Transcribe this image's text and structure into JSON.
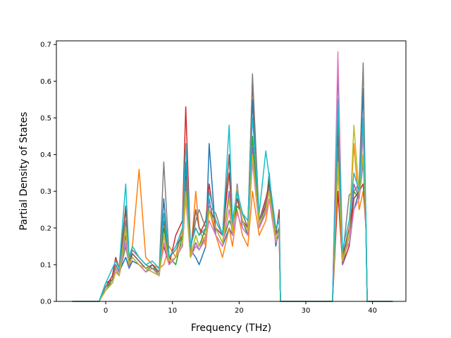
{
  "chart_data": {
    "type": "line",
    "title": "",
    "xlabel": "Frequency (THz)",
    "ylabel": "Partial Density of States",
    "xlim": [
      -7.4,
      45.0
    ],
    "ylim": [
      0.0,
      0.71
    ],
    "xticks": [
      0,
      10,
      20,
      30,
      40
    ],
    "yticks": [
      0.0,
      0.1,
      0.2,
      0.3,
      0.4,
      0.5,
      0.6,
      0.7
    ],
    "xtick_labels": [
      "0",
      "10",
      "20",
      "30",
      "40"
    ],
    "ytick_labels": [
      "0.0",
      "0.1",
      "0.2",
      "0.3",
      "0.4",
      "0.5",
      "0.6",
      "0.7"
    ],
    "grid": false,
    "legend": "none",
    "series_count": 10,
    "x": [
      -5.0,
      -1.0,
      0.0,
      1.0,
      1.5,
      2.0,
      3.0,
      3.5,
      4.0,
      5.0,
      6.0,
      7.0,
      8.0,
      8.7,
      9.5,
      10.5,
      11.5,
      12.0,
      12.7,
      13.5,
      14.0,
      15.0,
      15.5,
      16.5,
      17.5,
      18.5,
      19.0,
      19.7,
      20.5,
      21.3,
      22.0,
      23.0,
      24.0,
      24.5,
      25.5,
      26.0,
      26.2,
      30.0,
      34.0,
      34.8,
      35.5,
      36.5,
      37.2,
      38.0,
      38.6,
      39.0,
      39.2,
      43.0
    ],
    "series": [
      {
        "color": "#1f77b4",
        "values": [
          0,
          0,
          0.05,
          0.06,
          0.1,
          0.08,
          0.12,
          0.09,
          0.11,
          0.1,
          0.08,
          0.09,
          0.07,
          0.28,
          0.1,
          0.12,
          0.15,
          0.38,
          0.14,
          0.12,
          0.1,
          0.15,
          0.43,
          0.18,
          0.15,
          0.2,
          0.18,
          0.3,
          0.22,
          0.18,
          0.55,
          0.2,
          0.25,
          0.35,
          0.15,
          0.2,
          0,
          0,
          0,
          0.64,
          0.1,
          0.15,
          0.25,
          0.3,
          0.58,
          0.2,
          0,
          0
        ]
      },
      {
        "color": "#ff7f0e",
        "values": [
          0,
          0,
          0.04,
          0.05,
          0.08,
          0.07,
          0.2,
          0.1,
          0.15,
          0.36,
          0.12,
          0.1,
          0.09,
          0.1,
          0.15,
          0.12,
          0.2,
          0.3,
          0.12,
          0.3,
          0.2,
          0.15,
          0.25,
          0.18,
          0.12,
          0.2,
          0.15,
          0.25,
          0.18,
          0.15,
          0.3,
          0.18,
          0.22,
          0.28,
          0.16,
          0.18,
          0,
          0,
          0,
          0.36,
          0.12,
          0.2,
          0.43,
          0.25,
          0.3,
          0.22,
          0,
          0
        ]
      },
      {
        "color": "#2ca02c",
        "values": [
          0,
          0,
          0.03,
          0.06,
          0.09,
          0.07,
          0.15,
          0.1,
          0.12,
          0.1,
          0.08,
          0.1,
          0.07,
          0.2,
          0.12,
          0.1,
          0.18,
          0.32,
          0.12,
          0.18,
          0.15,
          0.2,
          0.25,
          0.2,
          0.16,
          0.22,
          0.2,
          0.26,
          0.24,
          0.2,
          0.45,
          0.22,
          0.25,
          0.33,
          0.18,
          0.2,
          0,
          0,
          0,
          0.5,
          0.12,
          0.18,
          0.3,
          0.28,
          0.47,
          0.22,
          0,
          0
        ]
      },
      {
        "color": "#d62728",
        "values": [
          0,
          0,
          0.04,
          0.07,
          0.12,
          0.09,
          0.25,
          0.12,
          0.14,
          0.12,
          0.1,
          0.09,
          0.08,
          0.15,
          0.1,
          0.18,
          0.22,
          0.53,
          0.15,
          0.2,
          0.18,
          0.22,
          0.32,
          0.2,
          0.18,
          0.35,
          0.22,
          0.28,
          0.22,
          0.2,
          0.4,
          0.22,
          0.28,
          0.32,
          0.18,
          0.2,
          0,
          0,
          0,
          0.3,
          0.1,
          0.15,
          0.28,
          0.3,
          0.32,
          0.2,
          0,
          0
        ]
      },
      {
        "color": "#9467bd",
        "values": [
          0,
          0,
          0.03,
          0.05,
          0.08,
          0.07,
          0.18,
          0.09,
          0.13,
          0.11,
          0.09,
          0.08,
          0.07,
          0.18,
          0.1,
          0.12,
          0.16,
          0.3,
          0.12,
          0.16,
          0.14,
          0.18,
          0.28,
          0.18,
          0.15,
          0.3,
          0.18,
          0.32,
          0.2,
          0.18,
          0.42,
          0.2,
          0.26,
          0.3,
          0.16,
          0.18,
          0,
          0,
          0,
          0.4,
          0.1,
          0.18,
          0.32,
          0.28,
          0.38,
          0.2,
          0,
          0
        ]
      },
      {
        "color": "#8c564b",
        "values": [
          0,
          0,
          0.04,
          0.06,
          0.1,
          0.08,
          0.26,
          0.11,
          0.13,
          0.11,
          0.09,
          0.1,
          0.08,
          0.22,
          0.12,
          0.15,
          0.18,
          0.34,
          0.14,
          0.25,
          0.2,
          0.18,
          0.25,
          0.22,
          0.18,
          0.4,
          0.2,
          0.28,
          0.24,
          0.2,
          0.6,
          0.22,
          0.26,
          0.32,
          0.18,
          0.25,
          0,
          0,
          0,
          0.45,
          0.12,
          0.2,
          0.28,
          0.3,
          0.4,
          0.22,
          0,
          0
        ]
      },
      {
        "color": "#e377c2",
        "values": [
          0,
          0,
          0.03,
          0.05,
          0.09,
          0.07,
          0.16,
          0.1,
          0.12,
          0.1,
          0.08,
          0.09,
          0.07,
          0.16,
          0.1,
          0.12,
          0.15,
          0.28,
          0.12,
          0.15,
          0.14,
          0.17,
          0.22,
          0.18,
          0.15,
          0.25,
          0.18,
          0.24,
          0.2,
          0.18,
          0.38,
          0.2,
          0.24,
          0.28,
          0.16,
          0.18,
          0,
          0,
          0,
          0.68,
          0.12,
          0.16,
          0.25,
          0.28,
          0.46,
          0.2,
          0,
          0
        ]
      },
      {
        "color": "#7f7f7f",
        "values": [
          0,
          0,
          0.04,
          0.06,
          0.1,
          0.08,
          0.22,
          0.11,
          0.14,
          0.12,
          0.1,
          0.09,
          0.08,
          0.38,
          0.12,
          0.14,
          0.18,
          0.33,
          0.14,
          0.22,
          0.25,
          0.2,
          0.26,
          0.24,
          0.18,
          0.28,
          0.2,
          0.3,
          0.24,
          0.2,
          0.62,
          0.22,
          0.27,
          0.31,
          0.18,
          0.2,
          0,
          0,
          0,
          0.42,
          0.12,
          0.29,
          0.3,
          0.32,
          0.65,
          0.22,
          0,
          0
        ]
      },
      {
        "color": "#bcbd22",
        "values": [
          0,
          0,
          0.03,
          0.05,
          0.08,
          0.07,
          0.2,
          0.1,
          0.12,
          0.1,
          0.09,
          0.08,
          0.07,
          0.18,
          0.11,
          0.12,
          0.16,
          0.3,
          0.12,
          0.18,
          0.15,
          0.18,
          0.25,
          0.2,
          0.16,
          0.28,
          0.19,
          0.31,
          0.22,
          0.19,
          0.4,
          0.21,
          0.25,
          0.3,
          0.17,
          0.19,
          0,
          0,
          0,
          0.38,
          0.11,
          0.18,
          0.48,
          0.29,
          0.4,
          0.21,
          0,
          0
        ]
      },
      {
        "color": "#17becf",
        "values": [
          0,
          0,
          0.05,
          0.09,
          0.11,
          0.09,
          0.32,
          0.12,
          0.15,
          0.12,
          0.1,
          0.11,
          0.09,
          0.24,
          0.12,
          0.15,
          0.2,
          0.43,
          0.15,
          0.2,
          0.18,
          0.2,
          0.3,
          0.22,
          0.18,
          0.48,
          0.22,
          0.3,
          0.24,
          0.22,
          0.5,
          0.24,
          0.41,
          0.34,
          0.2,
          0.22,
          0,
          0,
          0,
          0.55,
          0.14,
          0.22,
          0.35,
          0.3,
          0.5,
          0.24,
          0,
          0
        ]
      }
    ]
  }
}
